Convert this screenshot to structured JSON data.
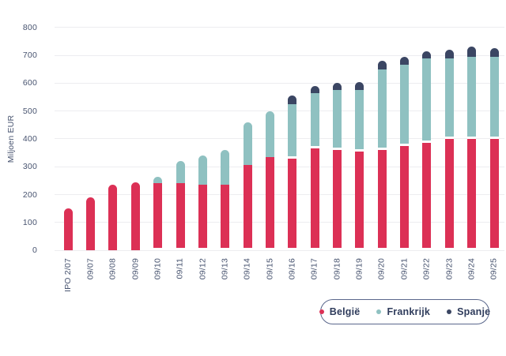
{
  "chart_data": {
    "type": "bar",
    "stacked": true,
    "title": "",
    "ylabel": "Miljoen EUR",
    "xlabel": "",
    "ylim": [
      0,
      800
    ],
    "yticks": [
      0,
      100,
      200,
      300,
      400,
      500,
      600,
      700,
      800
    ],
    "grid": true,
    "legend_position": "bottom-right",
    "categories": [
      "IPO 2/07",
      "09/07",
      "09/08",
      "09/09",
      "09/10",
      "09/11",
      "09/12",
      "09/13",
      "09/14",
      "09/15",
      "09/16",
      "09/17",
      "09/18",
      "09/19",
      "09/20",
      "09/21",
      "09/22",
      "09/23",
      "09/24",
      "09/25"
    ],
    "series": [
      {
        "name": "België",
        "color": "#DC3055",
        "values": [
          150,
          190,
          235,
          245,
          240,
          240,
          235,
          235,
          305,
          335,
          330,
          365,
          360,
          355,
          360,
          375,
          385,
          400,
          400,
          400
        ]
      },
      {
        "name": "Frankrijk",
        "color": "#8FC1C1",
        "values": [
          0,
          0,
          0,
          0,
          25,
          80,
          105,
          125,
          155,
          165,
          195,
          200,
          215,
          220,
          290,
          290,
          305,
          290,
          295,
          295
        ]
      },
      {
        "name": "Spanje",
        "color": "#3B4663",
        "values": [
          0,
          0,
          0,
          0,
          0,
          0,
          0,
          0,
          0,
          0,
          30,
          25,
          25,
          30,
          30,
          30,
          25,
          30,
          35,
          30
        ]
      }
    ],
    "totals": [
      150,
      190,
      235,
      245,
      265,
      320,
      340,
      360,
      460,
      500,
      555,
      590,
      600,
      605,
      680,
      695,
      715,
      720,
      730,
      725
    ]
  },
  "legend": {
    "items": [
      {
        "label": "België",
        "color": "#DC3055"
      },
      {
        "label": "Frankrijk",
        "color": "#8FC1C1"
      },
      {
        "label": "Spanje",
        "color": "#3B4663"
      }
    ]
  },
  "style": {
    "axis_text_color": "#47536F",
    "gridline_color": "#EDEDF0",
    "legend_border_color": "#5A678C",
    "background": "#FFFFFF"
  }
}
